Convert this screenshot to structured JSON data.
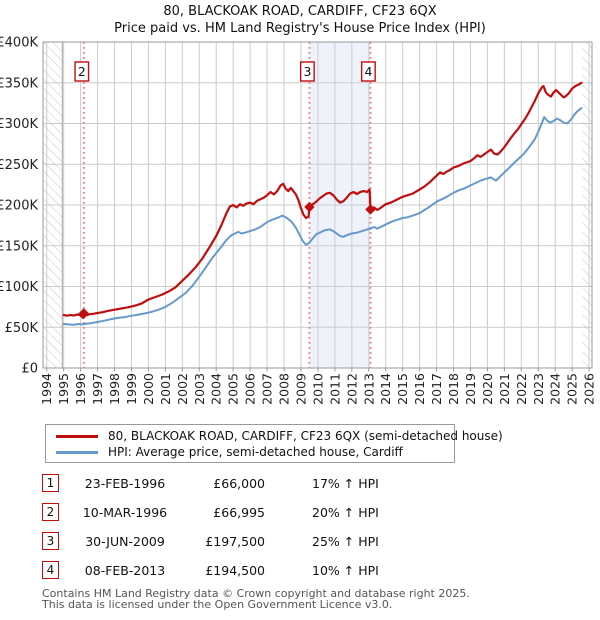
{
  "page": {
    "title_line1": "80, BLACKOAK ROAD, CARDIFF, CF23 6QX",
    "title_line2": "Price paid vs. HM Land Registry's House Price Index (HPI)"
  },
  "colors": {
    "property_line": "#c00d0d",
    "hpi_line": "#6699cc",
    "sale_marker": "#c00d0d",
    "marker_box_border": "#c00d0d",
    "dotted_line": "#f07878",
    "highlight_fill": "#edf2fb",
    "grid": "#cccccc",
    "plot_border": "#999999",
    "hatch": "#c6c6c6",
    "axis_text": "#222222"
  },
  "chart_data": {
    "type": "line",
    "title": "80, BLACKOAK ROAD, CARDIFF, CF23 6QX — Price paid vs. HM Land Registry's House Price Index (HPI)",
    "xlabel": "",
    "ylabel": "",
    "xlim": [
      1993.78,
      2026.17
    ],
    "ylim": [
      0,
      400000
    ],
    "grid": true,
    "x_ticks": [
      1994,
      1995,
      1996,
      1997,
      1998,
      1999,
      2000,
      2001,
      2002,
      2003,
      2004,
      2005,
      2006,
      2007,
      2008,
      2009,
      2010,
      2011,
      2012,
      2013,
      2014,
      2015,
      2016,
      2017,
      2018,
      2019,
      2020,
      2021,
      2022,
      2023,
      2024,
      2025,
      2026
    ],
    "y_ticks": [
      {
        "value": 0,
        "label": "£0"
      },
      {
        "value": 50000,
        "label": "£50K"
      },
      {
        "value": 100000,
        "label": "£100K"
      },
      {
        "value": 150000,
        "label": "£150K"
      },
      {
        "value": 200000,
        "label": "£200K"
      },
      {
        "value": 250000,
        "label": "£250K"
      },
      {
        "value": 300000,
        "label": "£300K"
      },
      {
        "value": 350000,
        "label": "£350K"
      },
      {
        "value": 400000,
        "label": "£400K"
      }
    ],
    "no_data_hatch_before": 1994.92,
    "no_data_hatch_after": 2025.62,
    "highlight_span": {
      "from": 2009.5,
      "to": 2013.1
    },
    "series": [
      {
        "name": "80, BLACKOAK ROAD, CARDIFF, CF23 6QX (semi-detached house)",
        "color": "#c00d0d",
        "width": 2.2,
        "points": [
          [
            1995.0,
            65000
          ],
          [
            1995.2,
            64200
          ],
          [
            1995.4,
            65000
          ],
          [
            1995.6,
            64300
          ],
          [
            1995.8,
            65500
          ],
          [
            1996.0,
            65200
          ],
          [
            1996.14,
            66000
          ],
          [
            1996.19,
            66995
          ],
          [
            1996.35,
            64800
          ],
          [
            1996.55,
            66000
          ],
          [
            1996.75,
            66500
          ],
          [
            1997.0,
            67500
          ],
          [
            1997.3,
            68500
          ],
          [
            1997.6,
            70000
          ],
          [
            1998.0,
            71500
          ],
          [
            1998.4,
            73000
          ],
          [
            1998.8,
            74500
          ],
          [
            1999.2,
            76500
          ],
          [
            1999.6,
            79000
          ],
          [
            2000.0,
            84000
          ],
          [
            2000.4,
            87000
          ],
          [
            2000.8,
            90000
          ],
          [
            2001.2,
            94000
          ],
          [
            2001.6,
            99000
          ],
          [
            2002.0,
            107000
          ],
          [
            2002.4,
            115000
          ],
          [
            2002.8,
            124000
          ],
          [
            2003.2,
            135000
          ],
          [
            2003.6,
            148000
          ],
          [
            2004.0,
            162000
          ],
          [
            2004.3,
            175000
          ],
          [
            2004.6,
            190000
          ],
          [
            2004.8,
            198000
          ],
          [
            2005.0,
            200000
          ],
          [
            2005.2,
            197000
          ],
          [
            2005.4,
            201000
          ],
          [
            2005.6,
            199000
          ],
          [
            2005.8,
            202000
          ],
          [
            2006.0,
            203000
          ],
          [
            2006.2,
            201000
          ],
          [
            2006.4,
            205000
          ],
          [
            2006.6,
            207000
          ],
          [
            2006.8,
            209000
          ],
          [
            2007.0,
            212000
          ],
          [
            2007.2,
            216000
          ],
          [
            2007.4,
            213000
          ],
          [
            2007.6,
            217000
          ],
          [
            2007.8,
            224000
          ],
          [
            2007.95,
            226000
          ],
          [
            2008.1,
            220000
          ],
          [
            2008.25,
            217000
          ],
          [
            2008.4,
            221000
          ],
          [
            2008.55,
            217000
          ],
          [
            2008.7,
            213000
          ],
          [
            2008.85,
            206000
          ],
          [
            2009.0,
            196000
          ],
          [
            2009.15,
            188000
          ],
          [
            2009.3,
            184000
          ],
          [
            2009.45,
            186000
          ],
          [
            2009.5,
            197500
          ],
          [
            2009.7,
            201000
          ],
          [
            2009.9,
            204000
          ],
          [
            2010.1,
            208000
          ],
          [
            2010.3,
            211000
          ],
          [
            2010.5,
            214000
          ],
          [
            2010.7,
            215000
          ],
          [
            2010.9,
            212000
          ],
          [
            2011.1,
            207000
          ],
          [
            2011.3,
            203000
          ],
          [
            2011.5,
            204500
          ],
          [
            2011.7,
            209000
          ],
          [
            2011.9,
            214000
          ],
          [
            2012.1,
            216000
          ],
          [
            2012.3,
            213500
          ],
          [
            2012.5,
            216000
          ],
          [
            2012.7,
            217000
          ],
          [
            2012.9,
            216000
          ],
          [
            2013.05,
            219000
          ],
          [
            2013.1,
            194500
          ],
          [
            2013.3,
            197000
          ],
          [
            2013.5,
            194000
          ],
          [
            2013.7,
            196500
          ],
          [
            2014.0,
            201000
          ],
          [
            2014.3,
            203000
          ],
          [
            2014.6,
            206000
          ],
          [
            2015.0,
            210000
          ],
          [
            2015.3,
            212000
          ],
          [
            2015.6,
            214000
          ],
          [
            2016.0,
            219000
          ],
          [
            2016.3,
            223000
          ],
          [
            2016.6,
            228000
          ],
          [
            2017.0,
            236000
          ],
          [
            2017.2,
            240000
          ],
          [
            2017.4,
            238000
          ],
          [
            2017.6,
            241000
          ],
          [
            2017.8,
            243000
          ],
          [
            2018.0,
            246000
          ],
          [
            2018.3,
            248000
          ],
          [
            2018.6,
            251000
          ],
          [
            2019.0,
            254000
          ],
          [
            2019.2,
            257000
          ],
          [
            2019.4,
            261000
          ],
          [
            2019.6,
            259000
          ],
          [
            2019.8,
            262000
          ],
          [
            2020.0,
            265000
          ],
          [
            2020.2,
            268000
          ],
          [
            2020.4,
            263000
          ],
          [
            2020.6,
            262000
          ],
          [
            2020.8,
            266000
          ],
          [
            2021.0,
            271000
          ],
          [
            2021.2,
            277000
          ],
          [
            2021.4,
            283000
          ],
          [
            2021.6,
            288000
          ],
          [
            2021.8,
            293000
          ],
          [
            2022.0,
            299000
          ],
          [
            2022.2,
            305000
          ],
          [
            2022.4,
            312000
          ],
          [
            2022.6,
            320000
          ],
          [
            2022.8,
            328000
          ],
          [
            2023.0,
            337000
          ],
          [
            2023.2,
            344000
          ],
          [
            2023.3,
            346000
          ],
          [
            2023.45,
            338000
          ],
          [
            2023.6,
            335000
          ],
          [
            2023.75,
            333000
          ],
          [
            2023.9,
            338000
          ],
          [
            2024.05,
            341000
          ],
          [
            2024.2,
            338000
          ],
          [
            2024.35,
            335000
          ],
          [
            2024.5,
            332000
          ],
          [
            2024.65,
            334000
          ],
          [
            2024.8,
            337000
          ],
          [
            2025.0,
            343000
          ],
          [
            2025.2,
            346000
          ],
          [
            2025.4,
            348000
          ],
          [
            2025.55,
            350000
          ]
        ]
      },
      {
        "name": "HPI: Average price, semi-detached house, Cardiff",
        "color": "#6699cc",
        "width": 2,
        "points": [
          [
            1995.0,
            54000
          ],
          [
            1995.3,
            53500
          ],
          [
            1995.6,
            53000
          ],
          [
            1995.9,
            54000
          ],
          [
            1996.1,
            53500
          ],
          [
            1996.35,
            54500
          ],
          [
            1996.6,
            55000
          ],
          [
            1997.0,
            56500
          ],
          [
            1997.4,
            58000
          ],
          [
            1997.8,
            60000
          ],
          [
            1998.2,
            61500
          ],
          [
            1998.6,
            62500
          ],
          [
            1999.0,
            64000
          ],
          [
            1999.4,
            65500
          ],
          [
            1999.8,
            67000
          ],
          [
            2000.2,
            69000
          ],
          [
            2000.6,
            71500
          ],
          [
            2001.0,
            75000
          ],
          [
            2001.4,
            80000
          ],
          [
            2001.8,
            86000
          ],
          [
            2002.2,
            92000
          ],
          [
            2002.6,
            101000
          ],
          [
            2003.0,
            112000
          ],
          [
            2003.4,
            124000
          ],
          [
            2003.8,
            136000
          ],
          [
            2004.2,
            146000
          ],
          [
            2004.6,
            157000
          ],
          [
            2004.9,
            163000
          ],
          [
            2005.1,
            165000
          ],
          [
            2005.3,
            167000
          ],
          [
            2005.5,
            165000
          ],
          [
            2005.7,
            166000
          ],
          [
            2006.0,
            168000
          ],
          [
            2006.3,
            170000
          ],
          [
            2006.6,
            173000
          ],
          [
            2007.0,
            179000
          ],
          [
            2007.3,
            182000
          ],
          [
            2007.6,
            184000
          ],
          [
            2007.9,
            187000
          ],
          [
            2008.1,
            185000
          ],
          [
            2008.3,
            182000
          ],
          [
            2008.5,
            178000
          ],
          [
            2008.7,
            172000
          ],
          [
            2008.9,
            164000
          ],
          [
            2009.1,
            156000
          ],
          [
            2009.3,
            151000
          ],
          [
            2009.5,
            154000
          ],
          [
            2009.7,
            159000
          ],
          [
            2009.9,
            164000
          ],
          [
            2010.1,
            166000
          ],
          [
            2010.4,
            169000
          ],
          [
            2010.7,
            170000
          ],
          [
            2010.9,
            168000
          ],
          [
            2011.1,
            165000
          ],
          [
            2011.3,
            162000
          ],
          [
            2011.5,
            161000
          ],
          [
            2011.7,
            163000
          ],
          [
            2012.0,
            165000
          ],
          [
            2012.3,
            166000
          ],
          [
            2012.6,
            168000
          ],
          [
            2012.9,
            170000
          ],
          [
            2013.1,
            171000
          ],
          [
            2013.3,
            173000
          ],
          [
            2013.5,
            171000
          ],
          [
            2013.8,
            174000
          ],
          [
            2014.1,
            177000
          ],
          [
            2014.4,
            180000
          ],
          [
            2014.7,
            182000
          ],
          [
            2015.0,
            184000
          ],
          [
            2015.3,
            185000
          ],
          [
            2015.6,
            187000
          ],
          [
            2016.0,
            190000
          ],
          [
            2016.3,
            194000
          ],
          [
            2016.6,
            198000
          ],
          [
            2017.0,
            204000
          ],
          [
            2017.3,
            207000
          ],
          [
            2017.6,
            210000
          ],
          [
            2018.0,
            215000
          ],
          [
            2018.3,
            218000
          ],
          [
            2018.6,
            220000
          ],
          [
            2019.0,
            224000
          ],
          [
            2019.3,
            227000
          ],
          [
            2019.6,
            230000
          ],
          [
            2019.9,
            232000
          ],
          [
            2020.2,
            234000
          ],
          [
            2020.5,
            230000
          ],
          [
            2020.8,
            236000
          ],
          [
            2021.0,
            240000
          ],
          [
            2021.3,
            246000
          ],
          [
            2021.6,
            252000
          ],
          [
            2021.9,
            258000
          ],
          [
            2022.2,
            264000
          ],
          [
            2022.5,
            272000
          ],
          [
            2022.8,
            281000
          ],
          [
            2023.0,
            290000
          ],
          [
            2023.2,
            300000
          ],
          [
            2023.35,
            308000
          ],
          [
            2023.5,
            304000
          ],
          [
            2023.7,
            301000
          ],
          [
            2023.9,
            303000
          ],
          [
            2024.1,
            306000
          ],
          [
            2024.3,
            304000
          ],
          [
            2024.5,
            301000
          ],
          [
            2024.7,
            300000
          ],
          [
            2024.9,
            304000
          ],
          [
            2025.1,
            310000
          ],
          [
            2025.3,
            315000
          ],
          [
            2025.55,
            319000
          ]
        ]
      }
    ],
    "sale_markers": [
      {
        "n": 1,
        "year": 1996.14,
        "price": 66000,
        "show_label": false
      },
      {
        "n": 2,
        "year": 1996.19,
        "price": 66995,
        "show_label": true
      },
      {
        "n": 3,
        "year": 2009.5,
        "price": 197500,
        "show_label": true
      },
      {
        "n": 4,
        "year": 2013.1,
        "price": 194500,
        "show_label": true
      }
    ]
  },
  "legend": {
    "items": [
      {
        "label": "80, BLACKOAK ROAD, CARDIFF, CF23 6QX (semi-detached house)",
        "color": "#c00d0d"
      },
      {
        "label": "HPI: Average price, semi-detached house, Cardiff",
        "color": "#6699cc"
      }
    ]
  },
  "transactions": {
    "rows": [
      {
        "n": "1",
        "date": "23-FEB-1996",
        "price": "£66,000",
        "vs_hpi": "17% ↑ HPI"
      },
      {
        "n": "2",
        "date": "10-MAR-1996",
        "price": "£66,995",
        "vs_hpi": "20% ↑ HPI"
      },
      {
        "n": "3",
        "date": "30-JUN-2009",
        "price": "£197,500",
        "vs_hpi": "25% ↑ HPI"
      },
      {
        "n": "4",
        "date": "08-FEB-2013",
        "price": "£194,500",
        "vs_hpi": "10% ↑ HPI"
      }
    ]
  },
  "footer": {
    "line1": "Contains HM Land Registry data © Crown copyright and database right 2025.",
    "line2": "This data is licensed under the Open Government Licence v3.0."
  }
}
